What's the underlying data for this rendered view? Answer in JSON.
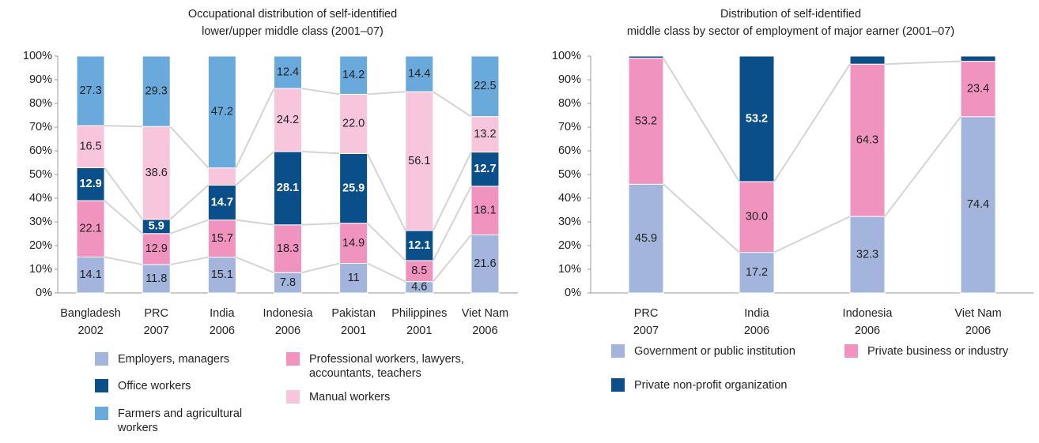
{
  "chart_data": [
    {
      "type": "bar",
      "stacked": true,
      "percent": true,
      "title": "Occupational distribution of self-identified lower/upper middle class (2001–07)",
      "categories": [
        "Bangladesh 2002",
        "PRC 2007",
        "India 2006",
        "Indonesia 2006",
        "Pakistan 2001",
        "Philippines 2001",
        "Viet Nam 2006"
      ],
      "series": [
        {
          "name": "Employers, managers",
          "color": "#a3b5dd",
          "values": [
            14.1,
            11.8,
            15.1,
            7.8,
            11.0,
            4.6,
            21.6
          ]
        },
        {
          "name": "Professional workers, lawyers, accountants, teachers",
          "color": "#f093bf",
          "values": [
            22.1,
            12.9,
            15.7,
            18.3,
            14.9,
            8.5,
            18.1
          ]
        },
        {
          "name": "Office workers",
          "color": "#0b4f8a",
          "values": [
            12.9,
            5.9,
            14.7,
            28.1,
            25.9,
            12.1,
            12.7
          ]
        },
        {
          "name": "Manual workers",
          "color": "#f7c6dc",
          "values": [
            16.5,
            38.6,
            7.3,
            24.2,
            22.0,
            56.1,
            13.2
          ],
          "value_labels": [
            "16.5",
            "38.6",
            null,
            "24.2",
            "22.0",
            "56.1",
            "13.2"
          ]
        },
        {
          "name": "Farmers and agricultural workers",
          "color": "#6aa9dc",
          "values": [
            27.3,
            29.3,
            47.2,
            12.4,
            14.2,
            14.4,
            22.5
          ]
        }
      ],
      "ylim": [
        0,
        100
      ],
      "yticks": [
        {
          "value": 0,
          "label": "0%"
        },
        {
          "value": 10,
          "label": "10%"
        },
        {
          "value": 20,
          "label": "20%"
        },
        {
          "value": 30,
          "label": "30%"
        },
        {
          "value": 40,
          "label": "40%"
        },
        {
          "value": 50,
          "label": "50%"
        },
        {
          "value": 60,
          "label": "60%"
        },
        {
          "value": 70,
          "label": "70%"
        },
        {
          "value": 80,
          "label": "80%"
        },
        {
          "value": 90,
          "label": "90%"
        },
        {
          "value": 100,
          "label": "100%"
        }
      ]
    },
    {
      "type": "bar",
      "stacked": true,
      "percent": true,
      "title": "Distribution of self-identified middle class by sector of employment of major earner (2001–07)",
      "categories": [
        "PRC 2007",
        "India 2006",
        "Indonesia 2006",
        "Viet Nam 2006"
      ],
      "series": [
        {
          "name": "Government or public institution",
          "color": "#a3b5dd",
          "values": [
            45.9,
            17.2,
            32.3,
            74.4
          ]
        },
        {
          "name": "Private business or industry",
          "color": "#f093bf",
          "values": [
            53.2,
            30.0,
            64.3,
            23.4
          ],
          "value_labels": [
            "53.2",
            "30.0",
            "64.3",
            "23.4"
          ]
        },
        {
          "name": "Private non-profit organization",
          "color": "#0b4f8a",
          "values": [
            0.9,
            53.2,
            3.4,
            2.2
          ],
          "value_labels": [
            null,
            "53.2",
            null,
            null
          ]
        }
      ],
      "ylim": [
        0,
        100
      ],
      "yticks": [
        {
          "value": 0,
          "label": "0%"
        },
        {
          "value": 10,
          "label": "10%"
        },
        {
          "value": 20,
          "label": "20%"
        },
        {
          "value": 30,
          "label": "30%"
        },
        {
          "value": 40,
          "label": "40%"
        },
        {
          "value": 50,
          "label": "50%"
        },
        {
          "value": 60,
          "label": "60%"
        },
        {
          "value": 70,
          "label": "70%"
        },
        {
          "value": 80,
          "label": "80%"
        },
        {
          "value": 90,
          "label": "90%"
        },
        {
          "value": 100,
          "label": "100%"
        }
      ]
    }
  ]
}
